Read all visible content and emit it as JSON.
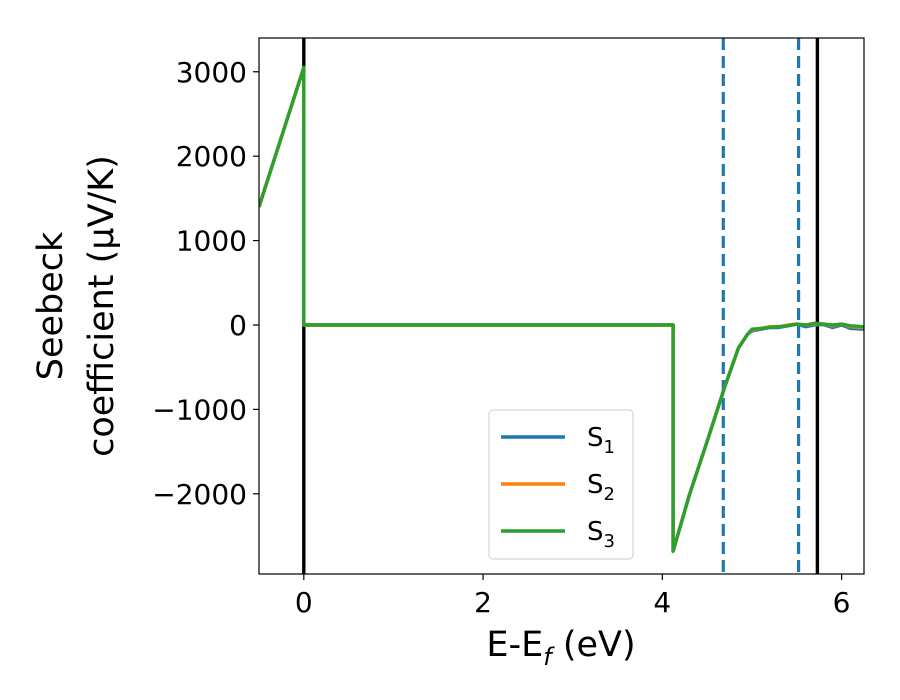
{
  "chart_data": {
    "type": "line",
    "xlabel_main": "E-E",
    "xlabel_sub": "f",
    "xlabel_unit": " (eV)",
    "ylabel_line1": "Seebeck",
    "ylabel_line2": "coefficient  (μV/K)",
    "xlim": [
      -0.5,
      6.25
    ],
    "ylim": [
      -2950,
      3400
    ],
    "xticks": [
      0,
      2,
      4,
      6
    ],
    "xtick_labels": [
      "0",
      "2",
      "4",
      "6"
    ],
    "yticks": [
      -2000,
      -1000,
      0,
      1000,
      2000,
      3000
    ],
    "ytick_labels": [
      "−2000",
      "−1000",
      "0",
      "1000",
      "2000",
      "3000"
    ],
    "grid": false,
    "legend_position": "lower-center",
    "series": [
      {
        "name": "S",
        "sub": "1",
        "color": "#1f77b4",
        "x": [
          -0.5,
          0.0,
          0.0,
          4.12,
          4.12,
          4.3,
          4.5,
          4.7,
          4.85,
          4.95,
          5.0,
          5.1,
          5.2,
          5.3,
          5.4,
          5.5,
          5.6,
          5.7,
          5.8,
          5.9,
          6.0,
          6.1,
          6.25
        ],
        "y": [
          1400,
          3050,
          0,
          0,
          -2680,
          -2020,
          -1380,
          -720,
          -270,
          -110,
          -70,
          -50,
          -30,
          -30,
          -10,
          10,
          -20,
          0,
          5,
          -30,
          0,
          -40,
          -50
        ]
      },
      {
        "name": "S",
        "sub": "2",
        "color": "#ff7f0e",
        "x": [
          -0.5,
          0.0,
          0.0,
          4.12,
          4.12,
          4.3,
          4.5,
          4.7,
          4.85,
          4.95,
          5.0,
          5.1,
          5.2,
          5.3,
          5.4,
          5.5,
          5.6,
          5.7,
          5.8,
          5.9,
          6.0,
          6.1,
          6.25
        ],
        "y": [
          1400,
          3050,
          0,
          0,
          -2680,
          -2020,
          -1380,
          -720,
          -270,
          -110,
          -60,
          -40,
          -20,
          -20,
          0,
          10,
          0,
          10,
          10,
          -10,
          10,
          -20,
          -30
        ]
      },
      {
        "name": "S",
        "sub": "3",
        "color": "#2ca02c",
        "x": [
          -0.5,
          0.0,
          0.0,
          4.12,
          4.12,
          4.3,
          4.5,
          4.7,
          4.85,
          4.95,
          5.0,
          5.1,
          5.2,
          5.3,
          5.4,
          5.5,
          5.6,
          5.7,
          5.8,
          5.9,
          6.0,
          6.1,
          6.25
        ],
        "y": [
          1400,
          3050,
          0,
          0,
          -2680,
          -2020,
          -1380,
          -720,
          -270,
          -110,
          -50,
          -40,
          -30,
          -20,
          -10,
          10,
          0,
          20,
          10,
          0,
          10,
          -10,
          -20
        ]
      }
    ],
    "vlines": [
      {
        "x": 0.0,
        "style": "solid",
        "color": "#000000"
      },
      {
        "x": 5.73,
        "style": "solid",
        "color": "#000000"
      },
      {
        "x": 4.68,
        "style": "dashed",
        "color": "#1f77b4"
      },
      {
        "x": 5.52,
        "style": "dashed",
        "color": "#1f77b4"
      }
    ]
  }
}
